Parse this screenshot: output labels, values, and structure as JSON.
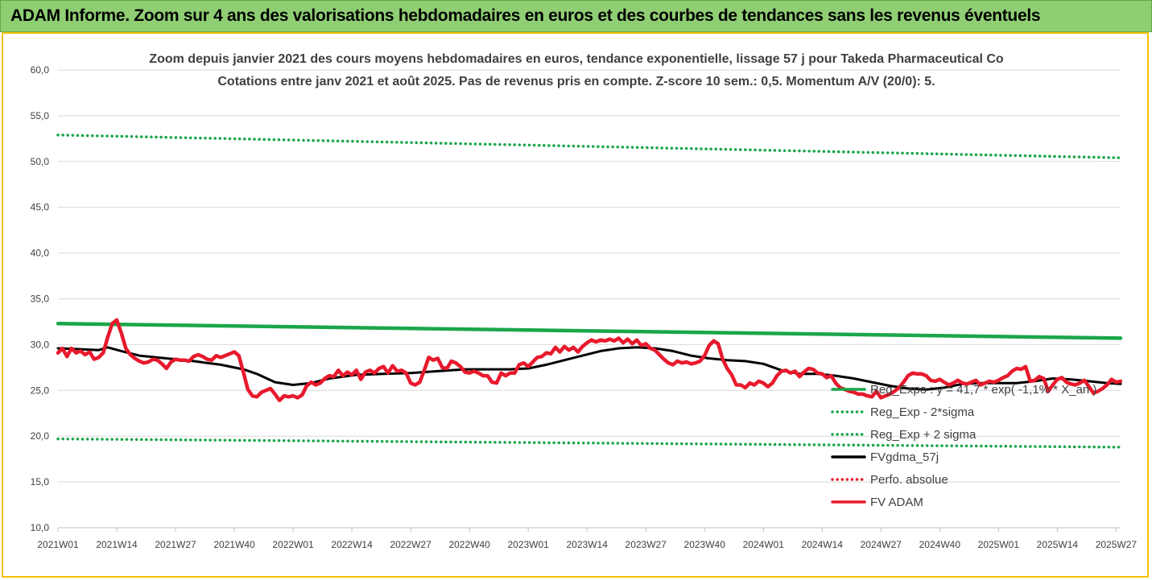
{
  "banner": {
    "text": "ADAM Informe. Zoom sur 4 ans des valorisations hebdomadaires en euros et des courbes de tendances sans les revenus éventuels"
  },
  "chart_data": {
    "type": "line",
    "title": "Zoom depuis janvier 2021 des cours moyens hebdomadaires en euros, tendance exponentielle, lissage 57 j pour Takeda Pharmaceutical Co",
    "subtitle": "Cotations entre janv 2021 et août 2025.  Pas de revenus pris en compte. Z-score 10 sem.: 0,5. Momentum A/V (20/0): 5.",
    "ylim": [
      10,
      60
    ],
    "yticks": [
      "10,0",
      "15,0",
      "20,0",
      "25,0",
      "30,0",
      "35,0",
      "40,0",
      "45,0",
      "50,0",
      "55,0",
      "60,0"
    ],
    "xticks": [
      "2021W01",
      "2021W14",
      "2021W27",
      "2021W40",
      "2022W01",
      "2022W14",
      "2022W27",
      "2022W40",
      "2023W01",
      "2023W14",
      "2023W27",
      "2023W40",
      "2024W01",
      "2024W14",
      "2024W27",
      "2024W40",
      "2025W01",
      "2025W14",
      "2025W27"
    ],
    "n_weeks": 236,
    "legend_position": "bottom-right",
    "series": [
      {
        "name": "Reg_Expo : y = 41,7 * exp( -1,1% * X_an )",
        "color": "#1aa64a",
        "style": "solid",
        "points": [
          [
            0,
            32.3
          ],
          [
            235,
            30.7
          ]
        ]
      },
      {
        "name": "Reg_Exp - 2*sigma",
        "color": "#1aa64a",
        "style": "dotted",
        "points": [
          [
            0,
            19.7
          ],
          [
            235,
            18.8
          ]
        ]
      },
      {
        "name": "Reg_Exp + 2 sigma",
        "color": "#1aa64a",
        "style": "dotted",
        "points": [
          [
            0,
            52.9
          ],
          [
            235,
            50.4
          ]
        ]
      },
      {
        "name": "FVgdma_57j",
        "color": "#000000",
        "style": "solid",
        "points": [
          [
            0,
            29.6
          ],
          [
            5,
            29.5
          ],
          [
            9,
            29.4
          ],
          [
            11,
            29.7
          ],
          [
            14,
            29.3
          ],
          [
            18,
            28.8
          ],
          [
            24,
            28.5
          ],
          [
            30,
            28.2
          ],
          [
            36,
            27.8
          ],
          [
            41,
            27.3
          ],
          [
            44,
            26.8
          ],
          [
            48,
            25.9
          ],
          [
            52,
            25.6
          ],
          [
            56,
            25.8
          ],
          [
            60,
            26.3
          ],
          [
            66,
            26.7
          ],
          [
            72,
            26.8
          ],
          [
            78,
            26.9
          ],
          [
            84,
            27.1
          ],
          [
            90,
            27.3
          ],
          [
            96,
            27.3
          ],
          [
            100,
            27.3
          ],
          [
            104,
            27.4
          ],
          [
            108,
            27.8
          ],
          [
            112,
            28.3
          ],
          [
            116,
            28.8
          ],
          [
            120,
            29.3
          ],
          [
            124,
            29.6
          ],
          [
            128,
            29.7
          ],
          [
            132,
            29.6
          ],
          [
            136,
            29.3
          ],
          [
            140,
            28.8
          ],
          [
            144,
            28.5
          ],
          [
            148,
            28.3
          ],
          [
            152,
            28.2
          ],
          [
            156,
            27.9
          ],
          [
            160,
            27.2
          ],
          [
            164,
            26.8
          ],
          [
            168,
            26.8
          ],
          [
            172,
            26.6
          ],
          [
            176,
            26.3
          ],
          [
            180,
            25.9
          ],
          [
            184,
            25.5
          ],
          [
            188,
            25.2
          ],
          [
            192,
            25.1
          ],
          [
            196,
            25.3
          ],
          [
            200,
            25.7
          ],
          [
            204,
            25.8
          ],
          [
            208,
            25.8
          ],
          [
            212,
            25.8
          ],
          [
            216,
            26.0
          ],
          [
            220,
            26.3
          ],
          [
            224,
            26.2
          ],
          [
            228,
            26.0
          ],
          [
            232,
            25.8
          ],
          [
            235,
            25.7
          ]
        ]
      },
      {
        "name": "Perfo. absolue",
        "color": "#e8192c",
        "style": "dotted",
        "points": []
      },
      {
        "name": "FV ADAM",
        "color": "#e8192c",
        "style": "solid",
        "points": [
          [
            0,
            29.1
          ],
          [
            1,
            29.6
          ],
          [
            2,
            28.7
          ],
          [
            3,
            29.6
          ],
          [
            4,
            29.1
          ],
          [
            5,
            29.3
          ],
          [
            6,
            28.9
          ],
          [
            7,
            29.2
          ],
          [
            8,
            28.4
          ],
          [
            9,
            28.6
          ],
          [
            10,
            29.1
          ],
          [
            11,
            30.8
          ],
          [
            12,
            32.3
          ],
          [
            13,
            32.7
          ],
          [
            14,
            31.3
          ],
          [
            15,
            29.6
          ],
          [
            16,
            28.9
          ],
          [
            17,
            28.5
          ],
          [
            18,
            28.2
          ],
          [
            19,
            28.0
          ],
          [
            20,
            28.1
          ],
          [
            21,
            28.4
          ],
          [
            22,
            28.3
          ],
          [
            23,
            27.9
          ],
          [
            24,
            27.4
          ],
          [
            25,
            28.1
          ],
          [
            26,
            28.4
          ],
          [
            27,
            28.3
          ],
          [
            28,
            28.3
          ],
          [
            29,
            28.2
          ],
          [
            30,
            28.7
          ],
          [
            31,
            28.9
          ],
          [
            32,
            28.7
          ],
          [
            33,
            28.4
          ],
          [
            34,
            28.3
          ],
          [
            35,
            28.8
          ],
          [
            36,
            28.6
          ],
          [
            37,
            28.8
          ],
          [
            38,
            29.0
          ],
          [
            39,
            29.2
          ],
          [
            40,
            28.8
          ],
          [
            41,
            27.0
          ],
          [
            42,
            25.1
          ],
          [
            43,
            24.4
          ],
          [
            44,
            24.3
          ],
          [
            45,
            24.8
          ],
          [
            46,
            25.0
          ],
          [
            47,
            25.2
          ],
          [
            48,
            24.6
          ],
          [
            49,
            23.9
          ],
          [
            50,
            24.4
          ],
          [
            51,
            24.3
          ],
          [
            52,
            24.4
          ],
          [
            53,
            24.2
          ],
          [
            54,
            24.5
          ],
          [
            55,
            25.5
          ],
          [
            56,
            25.9
          ],
          [
            57,
            25.6
          ],
          [
            58,
            25.8
          ],
          [
            59,
            26.3
          ],
          [
            60,
            26.6
          ],
          [
            61,
            26.5
          ],
          [
            62,
            27.2
          ],
          [
            63,
            26.6
          ],
          [
            64,
            27.0
          ],
          [
            65,
            26.7
          ],
          [
            66,
            27.2
          ],
          [
            67,
            26.2
          ],
          [
            68,
            27.0
          ],
          [
            69,
            27.2
          ],
          [
            70,
            26.9
          ],
          [
            71,
            27.4
          ],
          [
            72,
            27.6
          ],
          [
            73,
            26.9
          ],
          [
            74,
            27.7
          ],
          [
            75,
            27.1
          ],
          [
            76,
            27.2
          ],
          [
            77,
            26.9
          ],
          [
            78,
            25.8
          ],
          [
            79,
            25.6
          ],
          [
            80,
            25.9
          ],
          [
            81,
            27.2
          ],
          [
            82,
            28.6
          ],
          [
            83,
            28.3
          ],
          [
            84,
            28.5
          ],
          [
            85,
            27.5
          ],
          [
            86,
            27.4
          ],
          [
            87,
            28.2
          ],
          [
            88,
            28.0
          ],
          [
            89,
            27.6
          ],
          [
            90,
            27.0
          ],
          [
            91,
            26.9
          ],
          [
            92,
            27.1
          ],
          [
            93,
            26.9
          ],
          [
            94,
            26.6
          ],
          [
            95,
            26.6
          ],
          [
            96,
            25.9
          ],
          [
            97,
            25.8
          ],
          [
            98,
            26.9
          ],
          [
            99,
            26.6
          ],
          [
            100,
            26.9
          ],
          [
            101,
            26.9
          ],
          [
            102,
            27.8
          ],
          [
            103,
            28.0
          ],
          [
            104,
            27.6
          ],
          [
            105,
            28.1
          ],
          [
            106,
            28.6
          ],
          [
            107,
            28.7
          ],
          [
            108,
            29.1
          ],
          [
            109,
            29.0
          ],
          [
            110,
            29.7
          ],
          [
            111,
            29.2
          ],
          [
            112,
            29.8
          ],
          [
            113,
            29.4
          ],
          [
            114,
            29.7
          ],
          [
            115,
            29.2
          ],
          [
            116,
            29.8
          ],
          [
            117,
            30.2
          ],
          [
            118,
            30.5
          ],
          [
            119,
            30.3
          ],
          [
            120,
            30.5
          ],
          [
            121,
            30.4
          ],
          [
            122,
            30.6
          ],
          [
            123,
            30.4
          ],
          [
            124,
            30.7
          ],
          [
            125,
            30.2
          ],
          [
            126,
            30.6
          ],
          [
            127,
            30.1
          ],
          [
            128,
            30.5
          ],
          [
            129,
            29.9
          ],
          [
            130,
            30.1
          ],
          [
            131,
            29.6
          ],
          [
            132,
            29.4
          ],
          [
            133,
            28.9
          ],
          [
            134,
            28.4
          ],
          [
            135,
            28.0
          ],
          [
            136,
            27.8
          ],
          [
            137,
            28.2
          ],
          [
            138,
            28.0
          ],
          [
            139,
            28.1
          ],
          [
            140,
            27.9
          ],
          [
            141,
            28.0
          ],
          [
            142,
            28.2
          ],
          [
            143,
            28.8
          ],
          [
            144,
            29.9
          ],
          [
            145,
            30.4
          ],
          [
            146,
            30.1
          ],
          [
            147,
            28.4
          ],
          [
            148,
            27.4
          ],
          [
            149,
            26.7
          ],
          [
            150,
            25.6
          ],
          [
            151,
            25.6
          ],
          [
            152,
            25.3
          ],
          [
            153,
            25.8
          ],
          [
            154,
            25.6
          ],
          [
            155,
            26.0
          ],
          [
            156,
            25.8
          ],
          [
            157,
            25.4
          ],
          [
            158,
            25.8
          ],
          [
            159,
            26.6
          ],
          [
            160,
            27.1
          ],
          [
            161,
            27.2
          ],
          [
            162,
            26.9
          ],
          [
            163,
            27.1
          ],
          [
            164,
            26.5
          ],
          [
            165,
            27.0
          ],
          [
            166,
            27.4
          ],
          [
            167,
            27.3
          ],
          [
            168,
            26.9
          ],
          [
            169,
            26.8
          ],
          [
            170,
            26.4
          ],
          [
            171,
            26.6
          ],
          [
            172,
            25.8
          ],
          [
            173,
            25.3
          ],
          [
            174,
            25.1
          ],
          [
            175,
            24.9
          ],
          [
            176,
            24.8
          ],
          [
            177,
            24.6
          ],
          [
            178,
            24.6
          ],
          [
            179,
            24.4
          ],
          [
            180,
            24.3
          ],
          [
            181,
            24.9
          ],
          [
            182,
            24.2
          ],
          [
            183,
            24.4
          ],
          [
            184,
            24.6
          ],
          [
            185,
            24.9
          ],
          [
            186,
            25.3
          ],
          [
            187,
            25.9
          ],
          [
            188,
            26.6
          ],
          [
            189,
            26.9
          ],
          [
            190,
            26.8
          ],
          [
            191,
            26.8
          ],
          [
            192,
            26.6
          ],
          [
            193,
            26.1
          ],
          [
            194,
            26.0
          ],
          [
            195,
            26.2
          ],
          [
            196,
            25.9
          ],
          [
            197,
            25.6
          ],
          [
            198,
            25.8
          ],
          [
            199,
            26.1
          ],
          [
            200,
            25.8
          ],
          [
            201,
            25.7
          ],
          [
            202,
            25.9
          ],
          [
            203,
            26.1
          ],
          [
            204,
            25.6
          ],
          [
            205,
            25.8
          ],
          [
            206,
            26.0
          ],
          [
            207,
            25.9
          ],
          [
            208,
            26.1
          ],
          [
            209,
            26.4
          ],
          [
            210,
            26.6
          ],
          [
            211,
            27.1
          ],
          [
            212,
            27.4
          ],
          [
            213,
            27.3
          ],
          [
            214,
            27.6
          ],
          [
            215,
            26.0
          ],
          [
            216,
            26.1
          ],
          [
            217,
            26.5
          ],
          [
            218,
            26.3
          ],
          [
            219,
            24.9
          ],
          [
            220,
            25.6
          ],
          [
            221,
            26.2
          ],
          [
            222,
            26.4
          ],
          [
            223,
            25.9
          ],
          [
            224,
            25.7
          ],
          [
            225,
            25.6
          ],
          [
            226,
            25.8
          ],
          [
            227,
            26.1
          ],
          [
            228,
            25.4
          ],
          [
            229,
            24.7
          ],
          [
            230,
            24.9
          ],
          [
            231,
            25.2
          ],
          [
            232,
            25.6
          ],
          [
            233,
            26.2
          ],
          [
            234,
            25.9
          ],
          [
            235,
            26.0
          ]
        ]
      }
    ]
  }
}
